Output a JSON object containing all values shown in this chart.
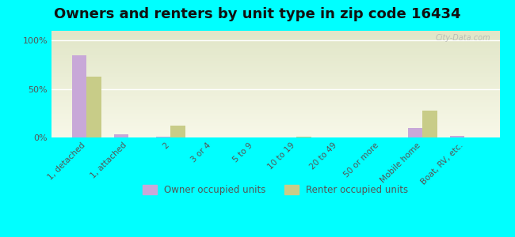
{
  "title": "Owners and renters by unit type in zip code 16434",
  "categories": [
    "1, detached",
    "1, attached",
    "2",
    "3 or 4",
    "5 to 9",
    "10 to 19",
    "20 to 49",
    "50 or more",
    "Mobile home",
    "Boat, RV, etc."
  ],
  "owner_values": [
    85,
    3,
    0.5,
    0,
    0,
    0,
    0,
    0,
    10,
    2
  ],
  "renter_values": [
    63,
    0,
    12,
    0,
    0,
    1,
    0,
    0,
    28,
    0
  ],
  "owner_color": "#c8a8d8",
  "renter_color": "#c8cc88",
  "background_color": "#00ffff",
  "plot_bg_top": "#e8f0d0",
  "plot_bg_bottom": "#f8f8e8",
  "yticks": [
    0,
    50,
    100
  ],
  "ylim": [
    0,
    110
  ],
  "bar_width": 0.35,
  "title_fontsize": 13,
  "legend_labels": [
    "Owner occupied units",
    "Renter occupied units"
  ],
  "watermark": "City-Data.com"
}
